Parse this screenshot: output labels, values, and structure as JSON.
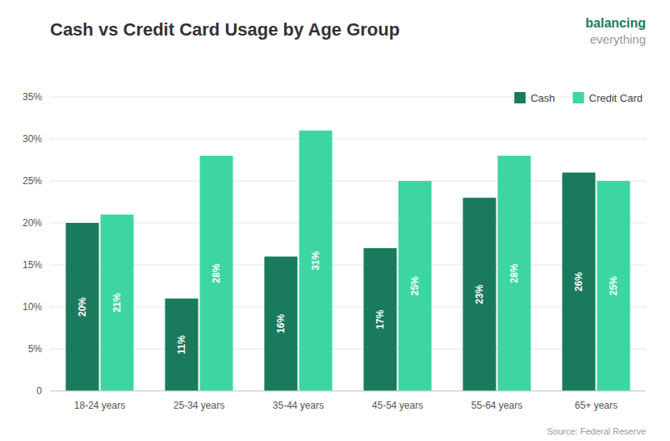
{
  "chart_data": {
    "type": "bar",
    "title": "Cash vs Credit Card Usage by Age Group",
    "categories": [
      "18-24 years",
      "25-34 years",
      "35-44 years",
      "45-54 years",
      "55-64 years",
      "65+ years"
    ],
    "series": [
      {
        "name": "Cash",
        "color": "#1a7a5e",
        "values": [
          20,
          11,
          16,
          17,
          23,
          26
        ],
        "value_labels": [
          "20%",
          "11%",
          "16%",
          "17%",
          "23%",
          "26%"
        ]
      },
      {
        "name": "Credit Card",
        "color": "#3dd6a3",
        "values": [
          21,
          28,
          31,
          25,
          28,
          25
        ],
        "value_labels": [
          "21%",
          "28%",
          "31%",
          "25%",
          "28%",
          "25%"
        ]
      }
    ],
    "ylim": [
      0,
      35
    ],
    "yticks": [
      0,
      {
        "value": 5,
        "label": "5%"
      },
      {
        "value": 10,
        "label": "10%"
      },
      {
        "value": 15,
        "label": "15%"
      },
      {
        "value": 20,
        "label": "20%"
      },
      {
        "value": 25,
        "label": "25%"
      },
      {
        "value": 30,
        "label": "30%"
      },
      {
        "value": 35,
        "label": "35%"
      }
    ],
    "grid": true,
    "legend": "upper right",
    "data_labels": true,
    "annotations": [
      "balancing",
      "everything",
      "Source: Federal Reserve"
    ]
  }
}
